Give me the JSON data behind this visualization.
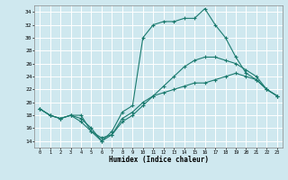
{
  "xlabel": "Humidex (Indice chaleur)",
  "bg_color": "#cfe8ef",
  "grid_color": "#ffffff",
  "line_color": "#1a7a6e",
  "xlim": [
    -0.5,
    23.5
  ],
  "ylim": [
    13,
    35
  ],
  "xticks": [
    0,
    1,
    2,
    3,
    4,
    5,
    6,
    7,
    8,
    9,
    10,
    11,
    12,
    13,
    14,
    15,
    16,
    17,
    18,
    19,
    20,
    21,
    22,
    23
  ],
  "yticks": [
    14,
    16,
    18,
    20,
    22,
    24,
    26,
    28,
    30,
    32,
    34
  ],
  "line1_x": [
    0,
    1,
    2,
    3,
    4,
    5,
    6,
    7,
    8,
    9,
    10,
    11,
    12,
    13,
    14,
    15,
    16,
    17,
    18,
    19,
    20,
    21,
    22,
    23
  ],
  "line1_y": [
    19,
    18,
    17.5,
    18,
    18,
    15.5,
    14.5,
    15,
    17,
    18,
    19.5,
    21,
    21.5,
    22,
    22.5,
    23,
    23,
    23.5,
    24,
    24.5,
    24,
    23.5,
    22,
    21
  ],
  "line2_x": [
    0,
    1,
    2,
    3,
    4,
    5,
    6,
    7,
    8,
    9,
    10,
    11,
    12,
    13,
    14,
    15,
    16,
    17,
    18,
    19,
    20,
    21,
    22,
    23
  ],
  "line2_y": [
    19,
    18,
    17.5,
    18,
    17.5,
    16,
    14,
    15.5,
    18.5,
    19.5,
    30,
    32,
    32.5,
    32.5,
    33,
    33,
    34.5,
    32,
    30,
    27,
    24.5,
    23.5,
    22,
    21
  ],
  "line3_x": [
    0,
    1,
    2,
    3,
    4,
    5,
    6,
    7,
    8,
    9,
    10,
    11,
    12,
    13,
    14,
    15,
    16,
    17,
    18,
    19,
    20,
    21,
    22,
    23
  ],
  "line3_y": [
    19,
    18,
    17.5,
    18,
    17,
    15.5,
    14,
    15,
    17.5,
    18.5,
    20,
    21,
    22.5,
    24,
    25.5,
    26.5,
    27,
    27,
    26.5,
    26,
    25,
    24,
    22,
    21
  ]
}
